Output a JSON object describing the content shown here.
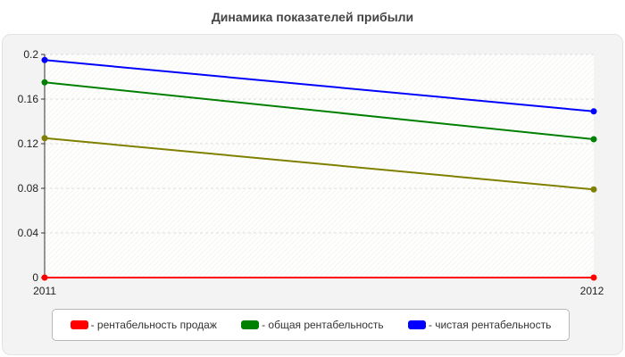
{
  "chart_data": {
    "type": "line",
    "title": "Динамика показателей прибыли",
    "x": [
      "2011",
      "2012"
    ],
    "ylim": [
      0,
      0.2
    ],
    "yticks": [
      "0",
      "0.04",
      "0.08",
      "0.12",
      "0.16",
      "0.2"
    ],
    "grid": true,
    "legend_position": "bottom",
    "series": [
      {
        "name": "- рентабельность продаж",
        "color": "#ff0000",
        "values": [
          0,
          0
        ]
      },
      {
        "name": "- общая рентабельность",
        "color": "#008000",
        "values": [
          0.175,
          0.124
        ]
      },
      {
        "name": "- чистая рентабельность",
        "color": "#0000ff",
        "values": [
          0.195,
          0.149
        ]
      },
      {
        "color": "#808000",
        "values": [
          0.125,
          0.079
        ]
      }
    ]
  }
}
